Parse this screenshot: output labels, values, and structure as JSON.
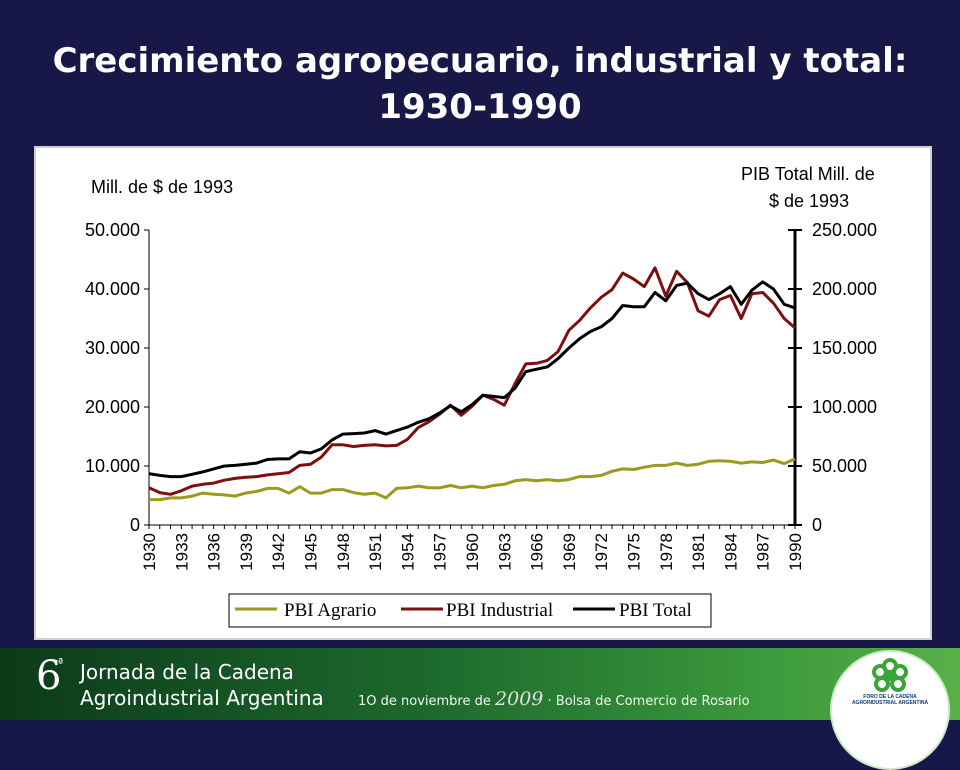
{
  "slide": {
    "title_line1": "Crecimiento agropecuario, industrial y total:",
    "title_line2": "1930-1990"
  },
  "colors": {
    "background": "#181848",
    "agrario": "#9a9a1e",
    "industrial": "#7a1010",
    "total": "#000000"
  },
  "chart_data": {
    "type": "line",
    "left_axis_label": "Mill. de $ de 1993",
    "right_axis_label_line1": "PIB Total Mill. de",
    "right_axis_label_line2": "$ de 1993",
    "ylim_left": [
      0,
      50000
    ],
    "ylim_right": [
      0,
      250000
    ],
    "left_ticks": [
      "0",
      "10.000",
      "20.000",
      "30.000",
      "40.000",
      "50.000"
    ],
    "right_ticks": [
      "0",
      "50.000",
      "100.000",
      "150.000",
      "200.000",
      "250.000"
    ],
    "x_tick_labels": [
      "1930",
      "1933",
      "1936",
      "1939",
      "1942",
      "1945",
      "1948",
      "1951",
      "1954",
      "1957",
      "1960",
      "1963",
      "1966",
      "1969",
      "1972",
      "1975",
      "1978",
      "1981",
      "1984",
      "1987",
      "1990"
    ],
    "x": [
      1930,
      1931,
      1932,
      1933,
      1934,
      1935,
      1936,
      1937,
      1938,
      1939,
      1940,
      1941,
      1942,
      1943,
      1944,
      1945,
      1946,
      1947,
      1948,
      1949,
      1950,
      1951,
      1952,
      1953,
      1954,
      1955,
      1956,
      1957,
      1958,
      1959,
      1960,
      1961,
      1962,
      1963,
      1964,
      1965,
      1966,
      1967,
      1968,
      1969,
      1970,
      1971,
      1972,
      1973,
      1974,
      1975,
      1976,
      1977,
      1978,
      1979,
      1980,
      1981,
      1982,
      1983,
      1984,
      1985,
      1986,
      1987,
      1988,
      1989,
      1990
    ],
    "legend_position": "bottom",
    "series": [
      {
        "name": "PBI Agrario",
        "axis": "left",
        "color": "#9a9a1e",
        "values": [
          4300,
          4300,
          4600,
          4600,
          4900,
          5400,
          5200,
          5100,
          4900,
          5400,
          5700,
          6200,
          6200,
          5400,
          6500,
          5400,
          5400,
          6000,
          6000,
          5500,
          5200,
          5400,
          4600,
          6200,
          6300,
          6600,
          6300,
          6300,
          6700,
          6300,
          6600,
          6300,
          6700,
          6900,
          7500,
          7700,
          7500,
          7700,
          7500,
          7700,
          8200,
          8200,
          8400,
          9100,
          9500,
          9400,
          9800,
          10100,
          10100,
          10500,
          10100,
          10300,
          10800,
          10900,
          10800,
          10500,
          10700,
          10600,
          11000,
          10400,
          11200
        ]
      },
      {
        "name": "PBI Industrial",
        "axis": "left",
        "color": "#7a1010",
        "values": [
          6300,
          5500,
          5200,
          5800,
          6600,
          6900,
          7100,
          7600,
          7900,
          8100,
          8200,
          8500,
          8700,
          8900,
          10100,
          10300,
          11500,
          13600,
          13600,
          13300,
          13500,
          13600,
          13400,
          13500,
          14500,
          16500,
          17500,
          18800,
          20300,
          18600,
          20100,
          22000,
          21300,
          20300,
          24000,
          27300,
          27400,
          27900,
          29400,
          33000,
          34700,
          36800,
          38600,
          39900,
          42700,
          41700,
          40400,
          43600,
          38800,
          43000,
          41100,
          36300,
          35400,
          38200,
          38900,
          35000,
          39200,
          39400,
          37600,
          35000,
          33400
        ]
      },
      {
        "name": "PBI Total",
        "axis": "right",
        "color": "#000000",
        "values": [
          43500,
          42000,
          41000,
          41000,
          43000,
          45000,
          47500,
          50000,
          50500,
          51500,
          52500,
          55500,
          56000,
          56000,
          62000,
          61000,
          64500,
          72000,
          77000,
          77500,
          78000,
          80000,
          77000,
          80000,
          83000,
          87000,
          90000,
          95000,
          101000,
          96000,
          102000,
          110000,
          109000,
          108000,
          116000,
          130000,
          132000,
          134000,
          141000,
          150000,
          158000,
          164000,
          168000,
          175000,
          186000,
          185000,
          185000,
          197000,
          190000,
          203000,
          205000,
          196000,
          191000,
          196000,
          202000,
          187000,
          199000,
          206000,
          200000,
          187000,
          184000
        ]
      }
    ]
  }
}
